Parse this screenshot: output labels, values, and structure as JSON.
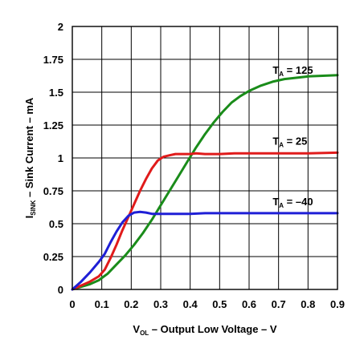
{
  "chart_data": {
    "type": "line",
    "xlabel": {
      "main": "V",
      "sub": "OL",
      "rest": " – Output Low Voltage – V"
    },
    "ylabel": {
      "main": "I",
      "sub": "SINK",
      "rest": " – Sink Current – mA"
    },
    "xlim": [
      0,
      0.9
    ],
    "ylim": [
      0,
      2
    ],
    "xticks": [
      "0",
      "0.1",
      "0.2",
      "0.3",
      "0.4",
      "0.5",
      "0.6",
      "0.7",
      "0.8",
      "0.9"
    ],
    "yticks": [
      "0",
      "0.25",
      "0.5",
      "0.75",
      "1",
      "1.25",
      "1.5",
      "1.75",
      "2"
    ],
    "grid": true,
    "legend": "inline labels",
    "series": [
      {
        "name": "T_A = 125",
        "label": {
          "main": "T",
          "sub": "A",
          "rest": " = 125"
        },
        "color": "#1a8c1a",
        "x": [
          0,
          0.03,
          0.06,
          0.09,
          0.12,
          0.15,
          0.18,
          0.21,
          0.24,
          0.27,
          0.3,
          0.33,
          0.36,
          0.39,
          0.42,
          0.45,
          0.48,
          0.51,
          0.54,
          0.57,
          0.6,
          0.64,
          0.68,
          0.72,
          0.76,
          0.8,
          0.85,
          0.9
        ],
        "y": [
          0,
          0.02,
          0.04,
          0.07,
          0.12,
          0.19,
          0.26,
          0.34,
          0.43,
          0.53,
          0.64,
          0.75,
          0.86,
          0.97,
          1.08,
          1.18,
          1.27,
          1.35,
          1.42,
          1.47,
          1.51,
          1.55,
          1.58,
          1.6,
          1.61,
          1.62,
          1.625,
          1.63
        ]
      },
      {
        "name": "T_A = 25",
        "label": {
          "main": "T",
          "sub": "A",
          "rest": " = 25"
        },
        "color": "#e01b1b",
        "x": [
          0,
          0.03,
          0.06,
          0.09,
          0.11,
          0.13,
          0.15,
          0.17,
          0.19,
          0.21,
          0.23,
          0.25,
          0.27,
          0.29,
          0.31,
          0.33,
          0.35,
          0.38,
          0.4,
          0.42,
          0.45,
          0.5,
          0.55,
          0.6,
          0.7,
          0.8,
          0.9
        ],
        "y": [
          0,
          0.03,
          0.06,
          0.1,
          0.15,
          0.24,
          0.34,
          0.45,
          0.55,
          0.65,
          0.75,
          0.84,
          0.92,
          0.98,
          1.01,
          1.02,
          1.03,
          1.03,
          1.03,
          1.035,
          1.03,
          1.03,
          1.035,
          1.035,
          1.035,
          1.035,
          1.04
        ]
      },
      {
        "name": "T_A = –40",
        "label": {
          "main": "T",
          "sub": "A",
          "rest": " = –40"
        },
        "color": "#1f1fd6",
        "x": [
          0,
          0.03,
          0.06,
          0.09,
          0.11,
          0.13,
          0.15,
          0.17,
          0.19,
          0.21,
          0.23,
          0.25,
          0.27,
          0.3,
          0.35,
          0.4,
          0.45,
          0.5,
          0.6,
          0.7,
          0.8,
          0.9
        ],
        "y": [
          0,
          0.06,
          0.13,
          0.21,
          0.27,
          0.36,
          0.44,
          0.51,
          0.56,
          0.585,
          0.59,
          0.585,
          0.575,
          0.575,
          0.575,
          0.575,
          0.58,
          0.58,
          0.58,
          0.58,
          0.58,
          0.58
        ]
      }
    ]
  }
}
